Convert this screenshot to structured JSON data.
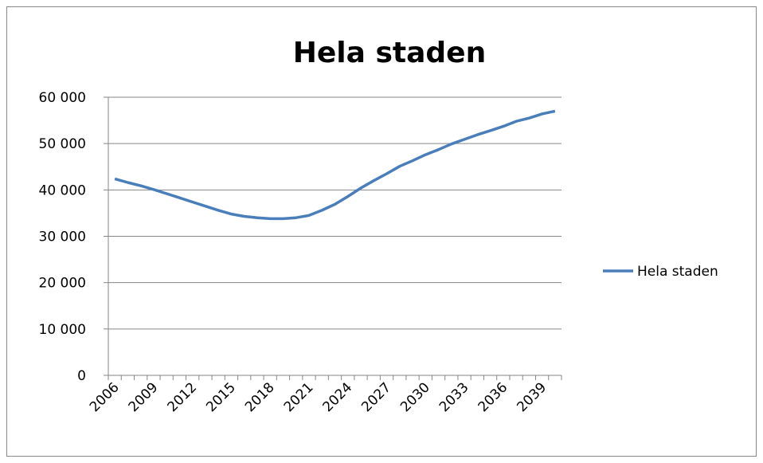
{
  "chart_data": {
    "type": "line",
    "title": "Hela staden",
    "categories": [
      "2006",
      null,
      null,
      "2009",
      null,
      null,
      "2012",
      null,
      null,
      "2015",
      null,
      null,
      "2018",
      null,
      null,
      "2021",
      null,
      null,
      "2024",
      null,
      null,
      "2027",
      null,
      null,
      "2030",
      null,
      null,
      "2033",
      null,
      null,
      "2036",
      null,
      null,
      "2039",
      null
    ],
    "series": [
      {
        "name": "Hela staden",
        "color": "#4a7ebb",
        "values": [
          42400,
          41600,
          40900,
          40100,
          39200,
          38300,
          37400,
          36500,
          35600,
          34800,
          34300,
          34000,
          33800,
          33800,
          34000,
          34500,
          35600,
          36900,
          38600,
          40400,
          42000,
          43500,
          45100,
          46300,
          47600,
          48700,
          49900,
          50900,
          51900,
          52800,
          53700,
          54800,
          55500,
          56400,
          57000
        ]
      }
    ],
    "ylim": [
      0,
      60000
    ],
    "yticks": [
      0,
      {
        "value": 10000,
        "label": "10 000"
      },
      {
        "value": 20000,
        "label": "20 000"
      },
      {
        "value": 30000,
        "label": "30 000"
      },
      {
        "value": 40000,
        "label": "40 000"
      },
      {
        "value": 50000,
        "label": "50 000"
      },
      {
        "value": 60000,
        "label": "60 000"
      }
    ],
    "grid": true,
    "legend": "right"
  }
}
